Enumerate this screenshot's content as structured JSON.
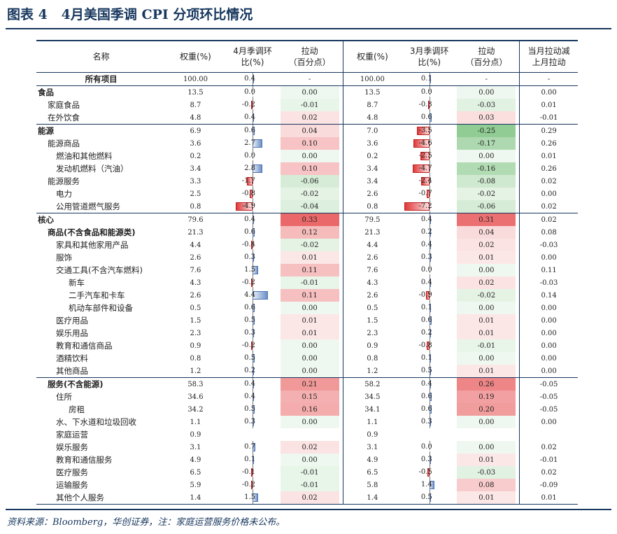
{
  "title": "图表 4   4月美国季调 CPI 分项环比情况",
  "headers": [
    "名称",
    "权重(%)",
    "4月季调环\n比(%)",
    "拉动\n（百分点）",
    "权重(%)",
    "3月季调环\n比(%)",
    "拉动\n（百分点）",
    "当月拉动减\n上月拉动"
  ],
  "rows": [
    {
      "name": "所有项目",
      "indent": 3,
      "bold": true,
      "w4": "100.00",
      "m4": "0.4",
      "v4": 0.4,
      "p4": "-",
      "pv4": null,
      "w3": "100.00",
      "m3": "0.1",
      "v3": 0.1,
      "p3": "-",
      "pv3": null,
      "d": "-"
    },
    {
      "name": "食品",
      "indent": 0,
      "bold": true,
      "sep": true,
      "w4": "13.5",
      "m4": "0.0",
      "v4": 0.0,
      "p4": "0.00",
      "pv4": 0.0,
      "w3": "13.5",
      "m3": "0.0",
      "v3": 0.0,
      "p3": "0.00",
      "pv3": 0.0,
      "d": "0.00"
    },
    {
      "name": "家庭食品",
      "indent": 1,
      "w4": "8.7",
      "m4": "-0.2",
      "v4": -0.2,
      "p4": "-0.01",
      "pv4": -0.01,
      "w3": "8.7",
      "m3": "-0.3",
      "v3": -0.3,
      "p3": "-0.03",
      "pv3": -0.03,
      "d": "0.01"
    },
    {
      "name": "在外饮食",
      "indent": 1,
      "w4": "4.8",
      "m4": "0.4",
      "v4": 0.4,
      "p4": "0.02",
      "pv4": 0.02,
      "w3": "4.8",
      "m3": "0.6",
      "v3": 0.6,
      "p3": "0.03",
      "pv3": 0.03,
      "d": "-0.01"
    },
    {
      "name": "能源",
      "indent": 0,
      "bold": true,
      "sep": true,
      "w4": "6.9",
      "m4": "0.6",
      "v4": 0.6,
      "p4": "0.04",
      "pv4": 0.04,
      "w3": "7.0",
      "m3": "-3.5",
      "v3": -3.5,
      "p3": "-0.25",
      "pv3": -0.25,
      "d": "0.29"
    },
    {
      "name": "能源商品",
      "indent": 1,
      "w4": "3.6",
      "m4": "2.7",
      "v4": 2.7,
      "p4": "0.10",
      "pv4": 0.1,
      "w3": "3.6",
      "m3": "-4.6",
      "v3": -4.6,
      "p3": "-0.17",
      "pv3": -0.17,
      "d": "0.26"
    },
    {
      "name": "燃油和其他燃料",
      "indent": 2,
      "w4": "0.2",
      "m4": "0.0",
      "v4": 0.0,
      "p4": "0.00",
      "pv4": 0.0,
      "w3": "0.2",
      "m3": "-2.5",
      "v3": -2.5,
      "p3": "0.00",
      "pv3": 0.0,
      "d": "0.01"
    },
    {
      "name": "发动机燃料（汽油）",
      "indent": 2,
      "w4": "3.4",
      "m4": "2.8",
      "v4": 2.8,
      "p4": "0.10",
      "pv4": 0.1,
      "w3": "3.4",
      "m3": "-4.7",
      "v3": -4.7,
      "p3": "-0.16",
      "pv3": -0.16,
      "d": "0.26"
    },
    {
      "name": "能源服务",
      "indent": 1,
      "w4": "3.3",
      "m4": "-1.7",
      "v4": -1.7,
      "p4": "-0.06",
      "pv4": -0.06,
      "w3": "3.4",
      "m3": "-2.4",
      "v3": -2.4,
      "p3": "-0.08",
      "pv3": -0.08,
      "d": "0.02"
    },
    {
      "name": "电力",
      "indent": 2,
      "w4": "2.5",
      "m4": "-0.8",
      "v4": -0.8,
      "p4": "-0.02",
      "pv4": -0.02,
      "w3": "2.6",
      "m3": "-0.7",
      "v3": -0.7,
      "p3": "-0.02",
      "pv3": -0.02,
      "d": "0.00"
    },
    {
      "name": "公用管道燃气服务",
      "indent": 2,
      "w4": "0.8",
      "m4": "-4.9",
      "v4": -4.9,
      "p4": "-0.04",
      "pv4": -0.04,
      "w3": "0.8",
      "m3": "-7.2",
      "v3": -7.2,
      "p3": "-0.06",
      "pv3": -0.06,
      "d": "0.02"
    },
    {
      "name": "核心",
      "indent": 0,
      "bold": true,
      "sep": true,
      "w4": "79.6",
      "m4": "0.4",
      "v4": 0.4,
      "p4": "0.33",
      "pv4": 0.33,
      "w3": "79.5",
      "m3": "0.4",
      "v3": 0.4,
      "p3": "0.31",
      "pv3": 0.31,
      "d": "0.02"
    },
    {
      "name": "商品(不含食品和能源类)",
      "indent": 1,
      "bold": true,
      "w4": "21.3",
      "m4": "0.6",
      "v4": 0.6,
      "p4": "0.12",
      "pv4": 0.12,
      "w3": "21.3",
      "m3": "0.2",
      "v3": 0.2,
      "p3": "0.04",
      "pv3": 0.04,
      "d": "0.08"
    },
    {
      "name": "家具和其他家用产品",
      "indent": 2,
      "w4": "4.4",
      "m4": "-0.4",
      "v4": -0.4,
      "p4": "-0.02",
      "pv4": -0.02,
      "w3": "4.4",
      "m3": "0.4",
      "v3": 0.4,
      "p3": "0.02",
      "pv3": 0.02,
      "d": "-0.03"
    },
    {
      "name": "服饰",
      "indent": 2,
      "w4": "2.6",
      "m4": "0.3",
      "v4": 0.3,
      "p4": "0.01",
      "pv4": 0.01,
      "w3": "2.6",
      "m3": "0.3",
      "v3": 0.3,
      "p3": "0.01",
      "pv3": 0.01,
      "d": "0.00"
    },
    {
      "name": "交通工具(不含汽车燃料)",
      "indent": 2,
      "w4": "7.6",
      "m4": "1.5",
      "v4": 1.5,
      "p4": "0.11",
      "pv4": 0.11,
      "w3": "7.6",
      "m3": "0.0",
      "v3": 0.0,
      "p3": "0.00",
      "pv3": 0.0,
      "d": "0.11"
    },
    {
      "name": "新车",
      "indent": 3,
      "w4": "4.3",
      "m4": "-0.2",
      "v4": -0.2,
      "p4": "-0.01",
      "pv4": -0.01,
      "w3": "4.3",
      "m3": "0.4",
      "v3": 0.4,
      "p3": "0.02",
      "pv3": 0.02,
      "d": "-0.03"
    },
    {
      "name": "二手汽车和卡车",
      "indent": 3,
      "w4": "2.6",
      "m4": "4.4",
      "v4": 4.4,
      "p4": "0.11",
      "pv4": 0.11,
      "w3": "2.6",
      "m3": "-0.9",
      "v3": -0.9,
      "p3": "-0.02",
      "pv3": -0.02,
      "d": "0.14"
    },
    {
      "name": "机动车部件和设备",
      "indent": 3,
      "w4": "0.5",
      "m4": "0.6",
      "v4": 0.6,
      "p4": "0.00",
      "pv4": 0.0,
      "w3": "0.5",
      "m3": "0.1",
      "v3": 0.1,
      "p3": "0.00",
      "pv3": 0.0,
      "d": "0.00"
    },
    {
      "name": "医疗用品",
      "indent": 2,
      "w4": "1.5",
      "m4": "0.5",
      "v4": 0.5,
      "p4": "0.01",
      "pv4": 0.01,
      "w3": "1.5",
      "m3": "0.6",
      "v3": 0.6,
      "p3": "0.01",
      "pv3": 0.01,
      "d": "0.00"
    },
    {
      "name": "娱乐用品",
      "indent": 2,
      "w4": "2.3",
      "m4": "0.3",
      "v4": 0.3,
      "p4": "0.01",
      "pv4": 0.01,
      "w3": "2.3",
      "m3": "0.2",
      "v3": 0.2,
      "p3": "0.01",
      "pv3": 0.01,
      "d": "0.00"
    },
    {
      "name": "教育和通信商品",
      "indent": 2,
      "w4": "0.9",
      "m4": "-0.2",
      "v4": -0.2,
      "p4": "0.00",
      "pv4": 0.0,
      "w3": "0.9",
      "m3": "-0.8",
      "v3": -0.8,
      "p3": "-0.01",
      "pv3": -0.01,
      "d": "0.00"
    },
    {
      "name": "酒精饮料",
      "indent": 2,
      "w4": "0.8",
      "m4": "0.5",
      "v4": 0.5,
      "p4": "0.00",
      "pv4": 0.0,
      "w3": "0.8",
      "m3": "0.1",
      "v3": 0.1,
      "p3": "0.00",
      "pv3": 0.0,
      "d": "0.00"
    },
    {
      "name": "其他商品",
      "indent": 2,
      "w4": "1.2",
      "m4": "0.2",
      "v4": 0.2,
      "p4": "0.00",
      "pv4": 0.0,
      "w3": "1.2",
      "m3": "0.5",
      "v3": 0.5,
      "p3": "0.01",
      "pv3": 0.01,
      "d": "0.00"
    },
    {
      "name": "服务(不含能源)",
      "indent": 1,
      "bold": true,
      "sep": true,
      "w4": "58.3",
      "m4": "0.4",
      "v4": 0.4,
      "p4": "0.21",
      "pv4": 0.21,
      "w3": "58.2",
      "m3": "0.4",
      "v3": 0.4,
      "p3": "0.26",
      "pv3": 0.26,
      "d": "-0.05"
    },
    {
      "name": "住所",
      "indent": 2,
      "w4": "34.6",
      "m4": "0.4",
      "v4": 0.4,
      "p4": "0.15",
      "pv4": 0.15,
      "w3": "34.5",
      "m3": "0.6",
      "v3": 0.6,
      "p3": "0.19",
      "pv3": 0.19,
      "d": "-0.05"
    },
    {
      "name": "房租",
      "indent": 3,
      "w4": "34.2",
      "m4": "0.5",
      "v4": 0.5,
      "p4": "0.16",
      "pv4": 0.16,
      "w3": "34.1",
      "m3": "0.6",
      "v3": 0.6,
      "p3": "0.20",
      "pv3": 0.2,
      "d": "-0.05"
    },
    {
      "name": "水、下水道和垃圾回收",
      "indent": 2,
      "w4": "1.1",
      "m4": "0.3",
      "v4": 0.3,
      "p4": "0.00",
      "pv4": 0.0,
      "w3": "1.1",
      "m3": "0.3",
      "v3": 0.3,
      "p3": "0.00",
      "pv3": 0.0,
      "d": "0.00"
    },
    {
      "name": "家庭运营",
      "indent": 2,
      "w4": "0.9",
      "m4": "",
      "v4": null,
      "p4": "",
      "pv4": null,
      "w3": "0.9",
      "m3": "",
      "v3": null,
      "p3": "",
      "pv3": null,
      "d": ""
    },
    {
      "name": "娱乐服务",
      "indent": 2,
      "w4": "3.1",
      "m4": "0.7",
      "v4": 0.7,
      "p4": "0.02",
      "pv4": 0.02,
      "w3": "3.1",
      "m3": "0.0",
      "v3": 0.0,
      "p3": "0.00",
      "pv3": 0.0,
      "d": "0.02"
    },
    {
      "name": "教育和通信服务",
      "indent": 2,
      "w4": "4.9",
      "m4": "0.1",
      "v4": 0.1,
      "p4": "0.00",
      "pv4": 0.0,
      "w3": "4.9",
      "m3": "0.3",
      "v3": 0.3,
      "p3": "0.01",
      "pv3": 0.01,
      "d": "-0.01"
    },
    {
      "name": "医疗服务",
      "indent": 2,
      "w4": "6.5",
      "m4": "-0.1",
      "v4": -0.1,
      "p4": "-0.01",
      "pv4": -0.01,
      "w3": "6.5",
      "m3": "-0.5",
      "v3": -0.5,
      "p3": "-0.03",
      "pv3": -0.03,
      "d": "0.02"
    },
    {
      "name": "运输服务",
      "indent": 2,
      "w4": "5.9",
      "m4": "-0.2",
      "v4": -0.2,
      "p4": "-0.01",
      "pv4": -0.01,
      "w3": "5.8",
      "m3": "1.4",
      "v3": 1.4,
      "p3": "0.08",
      "pv3": 0.08,
      "d": "-0.09"
    },
    {
      "name": "其他个人服务",
      "indent": 2,
      "w4": "1.4",
      "m4": "1.5",
      "v4": 1.5,
      "p4": "0.02",
      "pv4": 0.02,
      "w3": "1.4",
      "m3": "0.5",
      "v3": 0.5,
      "p3": "0.01",
      "pv3": 0.01,
      "d": "0.01"
    }
  ],
  "note": "资料来源：Bloomberg，华创证券，注：家庭运营服务价格未公布。",
  "colors": {
    "accent": "#17375e",
    "pos_bar": "#6d90c7",
    "neg_bar": "#e0383a",
    "heat_pos": "#e8585a",
    "heat_neg": "#63b767"
  }
}
